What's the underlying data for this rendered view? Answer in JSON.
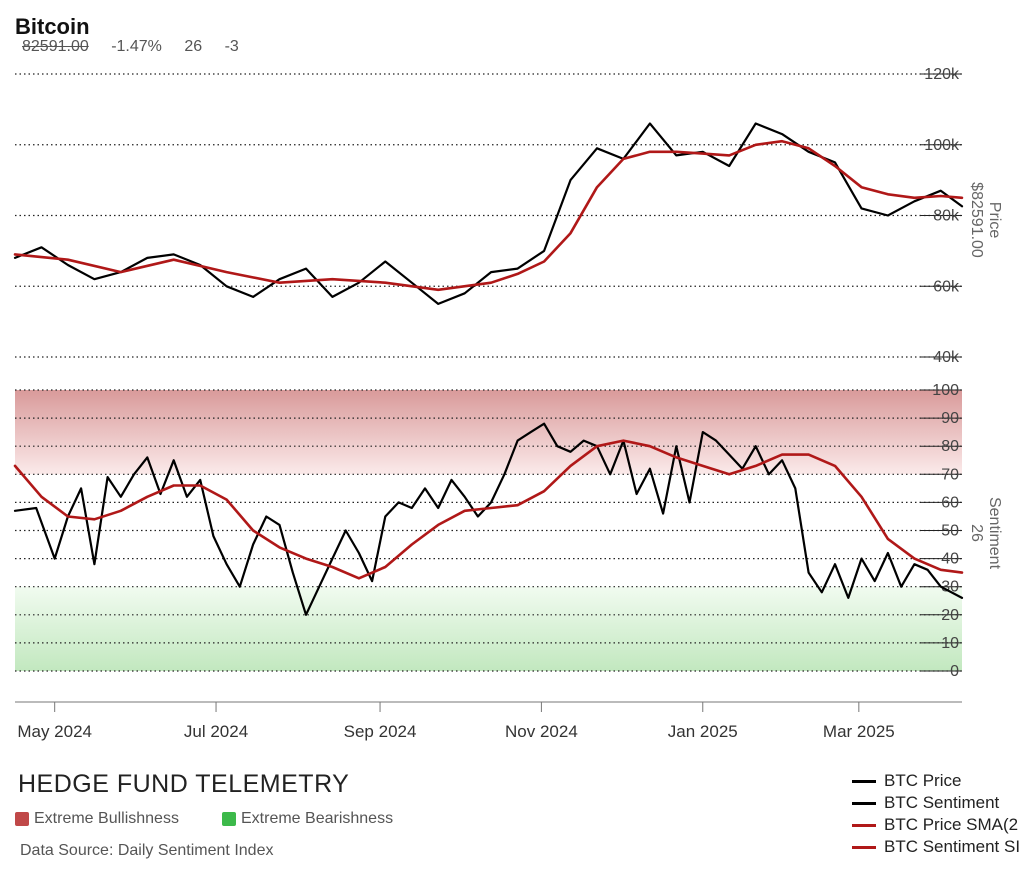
{
  "header": {
    "title": "Bitcoin",
    "price": "82591.00",
    "change_pct": "-1.47%",
    "sentiment": "26",
    "sentiment_change": "-3"
  },
  "footer": {
    "brand": "HEDGE FUND TELEMETRY",
    "bull_label": "Extreme Bullishness",
    "bear_label": "Extreme Bearishness",
    "source": "Data Source: Daily Sentiment Index",
    "bull_color": "#c04848",
    "bear_color": "#3cb94a"
  },
  "legend": [
    {
      "label": "BTC Price",
      "color": "#000000"
    },
    {
      "label": "BTC Sentiment",
      "color": "#000000"
    },
    {
      "label": "BTC Price SMA(2",
      "color": "#b01818"
    },
    {
      "label": "BTC Sentiment SI",
      "color": "#b01818"
    }
  ],
  "chart_data": [
    {
      "type": "line",
      "ylabel": "Price",
      "ylabel_value": "$82591.00",
      "ylim": [
        40000,
        120000
      ],
      "ticks": [
        {
          "v": 120000,
          "t": "120k"
        },
        {
          "v": 100000,
          "t": "100k"
        },
        {
          "v": 80000,
          "t": "80k"
        },
        {
          "v": 60000,
          "t": "60k"
        },
        {
          "v": 40000,
          "t": "40k"
        }
      ],
      "x_months": [
        {
          "label": "May 2024",
          "day": 15
        },
        {
          "label": "Jul 2024",
          "day": 76
        },
        {
          "label": "Sep 2024",
          "day": 138
        },
        {
          "label": "Nov 2024",
          "day": 199
        },
        {
          "label": "Jan 2025",
          "day": 260
        },
        {
          "label": "Mar 2025",
          "day": 319
        }
      ],
      "series": [
        {
          "name": "BTC Price",
          "color": "#000000",
          "x": [
            0,
            10,
            20,
            30,
            40,
            50,
            60,
            70,
            80,
            90,
            100,
            110,
            120,
            130,
            140,
            150,
            160,
            170,
            180,
            190,
            200,
            210,
            220,
            230,
            240,
            250,
            260,
            270,
            280,
            290,
            300,
            310,
            320,
            330,
            340,
            350,
            358
          ],
          "y": [
            68000,
            71000,
            66000,
            62000,
            64000,
            68000,
            69000,
            66000,
            60000,
            57000,
            62000,
            65000,
            57000,
            61000,
            67000,
            61000,
            55000,
            58000,
            64000,
            65000,
            70000,
            90000,
            99000,
            96000,
            106000,
            97000,
            98000,
            94000,
            106000,
            103000,
            98000,
            95000,
            82000,
            80000,
            84000,
            87000,
            82591
          ]
        },
        {
          "name": "BTC Price SMA",
          "color": "#b01818",
          "x": [
            0,
            20,
            40,
            60,
            80,
            100,
            120,
            140,
            160,
            180,
            190,
            200,
            210,
            220,
            230,
            240,
            250,
            260,
            270,
            280,
            290,
            300,
            310,
            320,
            330,
            340,
            350,
            358
          ],
          "y": [
            69000,
            67500,
            64000,
            67500,
            64000,
            61000,
            62000,
            61000,
            59000,
            61000,
            63500,
            67000,
            75000,
            88000,
            96000,
            98000,
            98000,
            97500,
            97000,
            100000,
            101000,
            99000,
            94000,
            88000,
            86000,
            85000,
            85500,
            85000
          ]
        }
      ]
    },
    {
      "type": "line",
      "ylabel": "Sentiment",
      "ylabel_value": "26",
      "ylim": [
        0,
        100
      ],
      "ticks": [
        {
          "v": 100,
          "t": "100"
        },
        {
          "v": 90,
          "t": "90"
        },
        {
          "v": 80,
          "t": "80"
        },
        {
          "v": 70,
          "t": "70"
        },
        {
          "v": 60,
          "t": "60"
        },
        {
          "v": 50,
          "t": "50"
        },
        {
          "v": 40,
          "t": "40"
        },
        {
          "v": 30,
          "t": "30"
        },
        {
          "v": 20,
          "t": "20"
        },
        {
          "v": 10,
          "t": "10"
        },
        {
          "v": 0,
          "t": "0"
        }
      ],
      "series": [
        {
          "name": "BTC Sentiment",
          "color": "#000000",
          "x": [
            0,
            8,
            15,
            20,
            25,
            30,
            35,
            40,
            45,
            50,
            55,
            60,
            65,
            70,
            75,
            80,
            85,
            90,
            95,
            100,
            105,
            110,
            115,
            120,
            125,
            130,
            135,
            140,
            145,
            150,
            155,
            160,
            165,
            170,
            175,
            180,
            185,
            190,
            195,
            200,
            205,
            210,
            215,
            220,
            225,
            230,
            235,
            240,
            245,
            250,
            255,
            260,
            265,
            270,
            275,
            280,
            285,
            290,
            295,
            300,
            305,
            310,
            315,
            320,
            325,
            330,
            335,
            340,
            345,
            350,
            358
          ],
          "y": [
            57,
            58,
            40,
            55,
            65,
            38,
            69,
            62,
            70,
            76,
            63,
            75,
            62,
            68,
            48,
            38,
            30,
            45,
            55,
            52,
            35,
            20,
            30,
            40,
            50,
            42,
            32,
            55,
            60,
            58,
            65,
            58,
            68,
            62,
            55,
            60,
            70,
            82,
            85,
            88,
            80,
            78,
            82,
            80,
            70,
            82,
            63,
            72,
            56,
            80,
            60,
            85,
            82,
            77,
            72,
            80,
            70,
            75,
            65,
            35,
            28,
            38,
            26,
            40,
            32,
            42,
            30,
            38,
            36,
            30,
            26
          ]
        },
        {
          "name": "BTC Sentiment SMA",
          "color": "#b01818",
          "x": [
            0,
            10,
            20,
            30,
            40,
            50,
            60,
            70,
            80,
            90,
            100,
            110,
            120,
            130,
            140,
            150,
            160,
            170,
            180,
            190,
            200,
            210,
            220,
            230,
            240,
            250,
            260,
            270,
            280,
            290,
            300,
            310,
            320,
            330,
            340,
            350,
            358
          ],
          "y": [
            73,
            62,
            55,
            54,
            57,
            62,
            66,
            66,
            61,
            50,
            44,
            40,
            37,
            33,
            37,
            45,
            52,
            57,
            58,
            59,
            64,
            73,
            80,
            82,
            80,
            76,
            73,
            70,
            73,
            77,
            77,
            73,
            62,
            47,
            40,
            36,
            35
          ]
        }
      ]
    }
  ]
}
